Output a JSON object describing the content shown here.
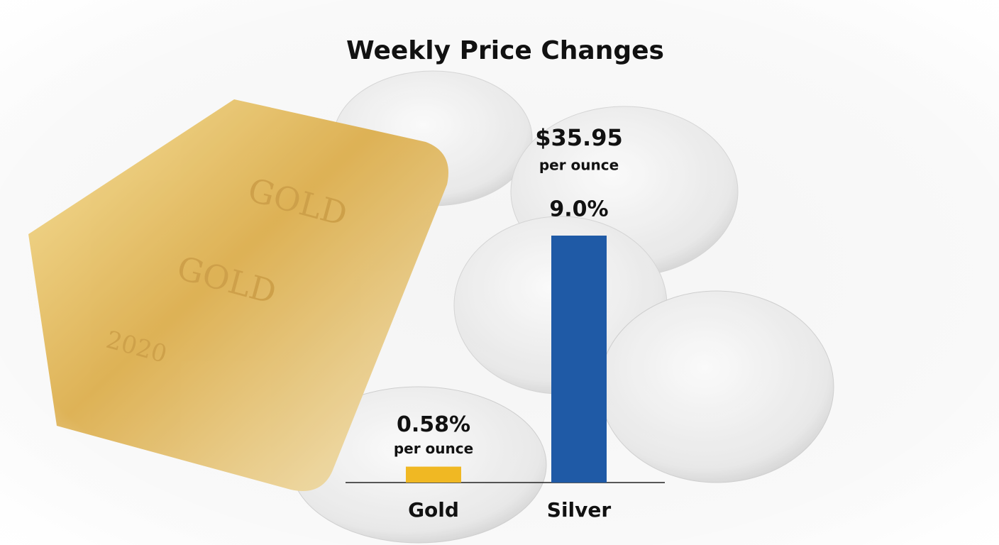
{
  "chart_data": {
    "type": "bar",
    "title": "Weekly Price Changes",
    "categories": [
      "Gold",
      "Silver"
    ],
    "values": [
      0.58,
      9.0
    ],
    "value_labels": [
      "0.58%",
      "9.0%"
    ],
    "colors": [
      "#f0b823",
      "#1f5aa6"
    ],
    "annotations": [
      [
        "per ounce"
      ],
      [
        "$35.95",
        "per ounce"
      ]
    ]
  }
}
